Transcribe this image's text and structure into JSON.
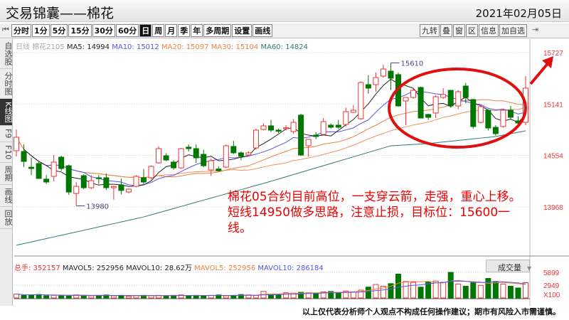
{
  "header": {
    "title": "交易锦囊——棉花",
    "date": "2021年02月05日"
  },
  "toolbar": {
    "first_icon": "skip-start-icon",
    "periods": [
      "分时",
      "1分",
      "5分",
      "15分",
      "30分",
      "60分",
      "日",
      "周",
      "月",
      "季",
      "年",
      "多周期",
      "设置",
      "画线"
    ],
    "active": "日",
    "right_tools": [
      "九转",
      "叠",
      "窗",
      "区",
      "信息",
      "加自选"
    ],
    "end_icon": "collapse-right-icon"
  },
  "sidebar": {
    "items": [
      "自选股",
      "分时图",
      "K线图",
      "F9",
      "F10",
      "周期",
      "画线",
      "回放"
    ],
    "active": "K线图"
  },
  "info": {
    "period": "日线",
    "symbol": "棉花2105",
    "ma5": "MA5: 14994",
    "ma10": "MA10: 15012",
    "ma20": "MA20: 15097",
    "ma30": "MA30: 15104",
    "ma60": "MA60: 14824"
  },
  "volume_info": {
    "total": "总手: 352157",
    "mavol5a": "MAVOL5: 252956",
    "mavol10a": "MAVOL10: 28.62万",
    "mavol5b": "MAVOL5: 252956",
    "mavol10b": "MAVOL10: 286184",
    "selector": "成交量",
    "selector_icon": "dropdown-arrow-icon"
  },
  "annotation": "棉花05合约目前高位，一支穿云箭，走强，重心上移。短线14950做多思路，注意止损，目标位：15600一线。",
  "disclaimer": "以上仅代表分析师个人观点不构成任何操作建议；期市有风险入市需谨慎。",
  "colors": {
    "up": "#ee3333",
    "down": "#007700",
    "ma5": "#222222",
    "ma10": "#5555ee",
    "ma20": "#f08040",
    "ma30": "#f09060",
    "ma60": "#337777",
    "annotation": "#e00000"
  },
  "chart_data": {
    "type": "candlestick",
    "y_ticks": [
      "15727",
      "15141",
      "14554",
      "13968"
    ],
    "ylim": [
      13968,
      15727
    ],
    "markers": {
      "high": "15610",
      "low": "13980"
    },
    "vol_ticks": [
      "5899",
      "2949",
      "X100"
    ],
    "vol_max": 5899,
    "ohlc": [
      [
        14608,
        14851,
        14543,
        14762
      ],
      [
        14600,
        14680,
        14420,
        14486
      ],
      [
        14420,
        14530,
        14330,
        14405
      ],
      [
        14462,
        14480,
        14290,
        14292
      ],
      [
        14284,
        14330,
        14230,
        14251
      ],
      [
        14316,
        14560,
        14260,
        14478
      ],
      [
        14535,
        14550,
        14380,
        14405
      ],
      [
        14437,
        14450,
        14105,
        14137
      ],
      [
        14121,
        14250,
        13980,
        14202
      ],
      [
        14324,
        14340,
        14170,
        14186
      ],
      [
        14186,
        14330,
        14170,
        14267
      ],
      [
        14300,
        14330,
        14230,
        14290
      ],
      [
        14300,
        14350,
        14160,
        14186
      ],
      [
        14186,
        14210,
        14050,
        14200
      ],
      [
        14219,
        14290,
        14110,
        14155
      ],
      [
        14138,
        14180,
        14120,
        14170
      ],
      [
        14202,
        14330,
        14190,
        14316
      ],
      [
        14300,
        14400,
        14230,
        14251
      ],
      [
        14300,
        14440,
        14280,
        14430
      ],
      [
        14470,
        14660,
        14460,
        14632
      ],
      [
        14551,
        14580,
        14490,
        14502
      ],
      [
        14478,
        14500,
        14390,
        14413
      ],
      [
        14413,
        14640,
        14400,
        14632
      ],
      [
        14649,
        14680,
        14600,
        14632
      ],
      [
        14632,
        14680,
        14470,
        14527
      ],
      [
        14567,
        14620,
        14420,
        14437
      ],
      [
        14389,
        14520,
        14320,
        14494
      ],
      [
        14400,
        14430,
        14370,
        14380
      ],
      [
        14421,
        14680,
        14410,
        14665
      ],
      [
        14657,
        14720,
        14570,
        14584
      ],
      [
        14584,
        14600,
        14500,
        14543
      ],
      [
        14560,
        14600,
        14540,
        14584
      ],
      [
        14640,
        14860,
        14620,
        14843
      ],
      [
        14851,
        14920,
        14840,
        14892
      ],
      [
        14892,
        14960,
        14820,
        14843
      ],
      [
        14843,
        14860,
        14810,
        14830
      ],
      [
        14860,
        14900,
        14840,
        14870
      ],
      [
        14827,
        14970,
        14800,
        14932
      ],
      [
        15014,
        15030,
        14550,
        14559
      ],
      [
        14665,
        14740,
        14540,
        14738
      ],
      [
        14786,
        14820,
        14740,
        14770
      ],
      [
        14794,
        14980,
        14780,
        14940
      ],
      [
        14900,
        14920,
        14860,
        14876
      ],
      [
        14900,
        14960,
        14860,
        14876
      ],
      [
        14908,
        15100,
        14880,
        15054
      ],
      [
        15046,
        15130,
        15040,
        15070
      ],
      [
        14973,
        15400,
        14960,
        15386
      ],
      [
        15362,
        15470,
        15260,
        15322
      ],
      [
        15362,
        15500,
        15280,
        15443
      ],
      [
        15459,
        15590,
        15440,
        15540
      ],
      [
        15516,
        15610,
        15300,
        15435
      ],
      [
        15476,
        15500,
        15110,
        15119
      ],
      [
        15176,
        15220,
        14900,
        15216
      ],
      [
        15216,
        15320,
        15200,
        15297
      ],
      [
        15330,
        15340,
        14980,
        14981
      ],
      [
        15022,
        15030,
        14960,
        14989
      ],
      [
        15038,
        15240,
        14980,
        15224
      ],
      [
        15216,
        15320,
        15200,
        15249
      ],
      [
        15297,
        15300,
        15100,
        15119
      ],
      [
        15119,
        15300,
        15080,
        15281
      ],
      [
        15346,
        15380,
        15150,
        15216
      ],
      [
        15192,
        15200,
        14860,
        14884
      ],
      [
        14932,
        15130,
        14920,
        15111
      ],
      [
        15070,
        15080,
        14840,
        14867
      ],
      [
        14875,
        14900,
        14780,
        14803
      ],
      [
        14884,
        15090,
        14870,
        15070
      ],
      [
        15070,
        15120,
        14960,
        14989
      ],
      [
        14949,
        15000,
        14900,
        14924
      ],
      [
        14932,
        15460,
        14900,
        15322
      ]
    ],
    "volume": [
      900,
      600,
      700,
      800,
      500,
      600,
      500,
      500,
      700,
      600,
      500,
      600,
      700,
      500,
      600,
      400,
      500,
      600,
      500,
      600,
      500,
      600,
      700,
      500,
      600,
      500,
      600,
      700,
      500,
      600,
      800,
      700,
      600,
      1500,
      900,
      900,
      1200,
      1100,
      1300,
      1200,
      1100,
      1400,
      1500,
      1300,
      1600,
      1400,
      1800,
      2500,
      3100,
      2700,
      3300,
      5500,
      3800,
      3600,
      2500,
      3700,
      3900,
      3600,
      5900,
      3200,
      2700,
      3500,
      2900,
      4500,
      3800,
      3200,
      2700,
      2300,
      3521
    ],
    "ma60_samples": [
      [
        1,
        13530
      ],
      [
        18,
        13853
      ],
      [
        35,
        14260
      ],
      [
        51,
        14665
      ],
      [
        56,
        14690
      ],
      [
        65,
        14770
      ],
      [
        69,
        14835
      ]
    ]
  }
}
